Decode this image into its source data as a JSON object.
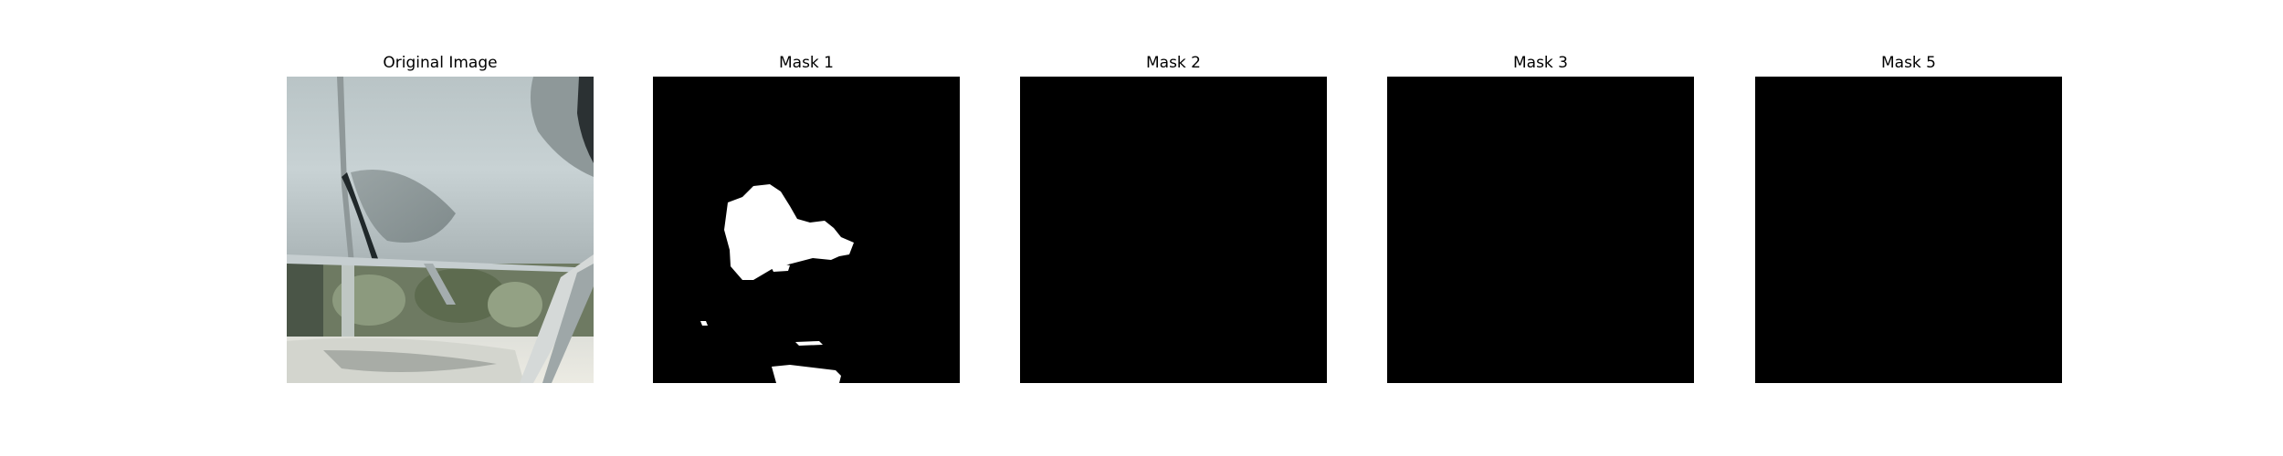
{
  "panels": [
    {
      "title": "Original Image"
    },
    {
      "title": "Mask 1"
    },
    {
      "title": "Mask 2"
    },
    {
      "title": "Mask 3"
    },
    {
      "title": "Mask 5"
    }
  ],
  "colors": {
    "mask_background": "#000000",
    "mask_foreground": "#ffffff",
    "page_background": "#ffffff"
  }
}
